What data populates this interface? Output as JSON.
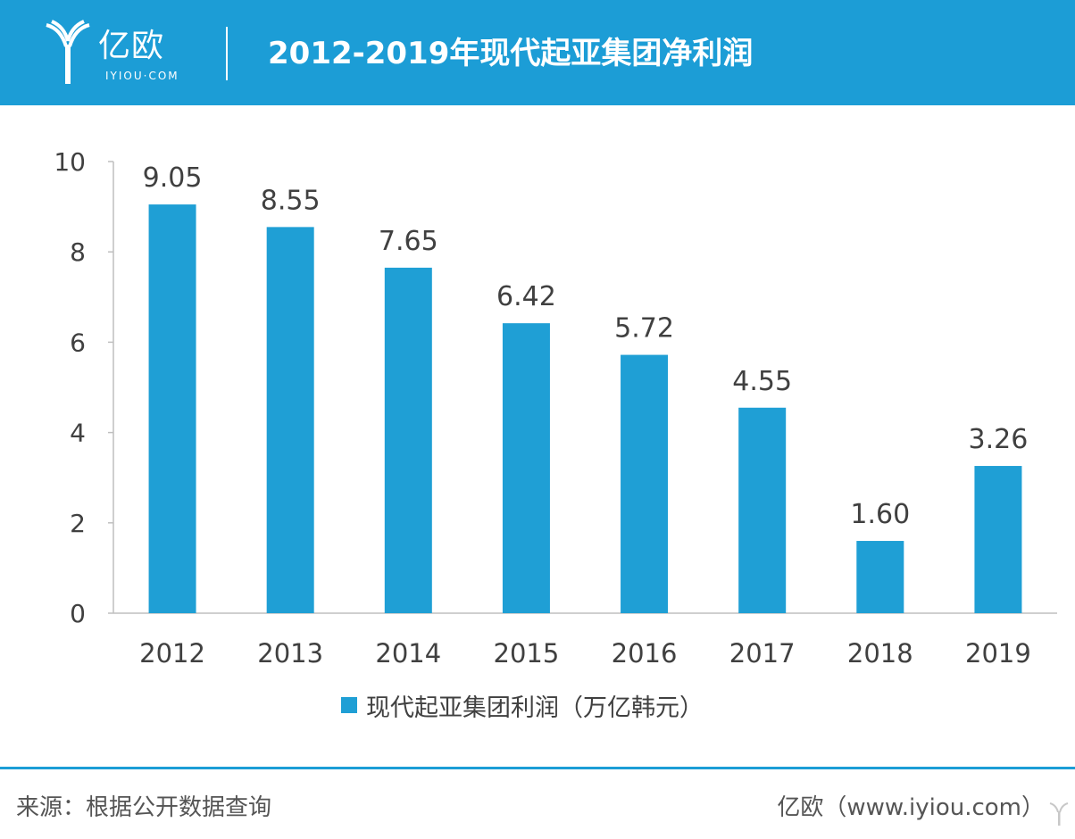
{
  "header": {
    "logo_text": "亿欧",
    "logo_subtext": "IYIOU·COM",
    "title": "2012-2019年现代起亚集团净利润"
  },
  "colors": {
    "accent": "#1c9dd6",
    "bar": "#1f9fd5",
    "axis": "#bfbfbf",
    "text": "#404040"
  },
  "chart_data": {
    "type": "bar",
    "categories": [
      "2012",
      "2013",
      "2014",
      "2015",
      "2016",
      "2017",
      "2018",
      "2019"
    ],
    "series": [
      {
        "name": "现代起亚集团利润（万亿韩元）",
        "values": [
          9.05,
          8.55,
          7.65,
          6.42,
          5.72,
          4.55,
          1.6,
          3.26
        ],
        "value_labels": [
          "9.05",
          "8.55",
          "7.65",
          "6.42",
          "5.72",
          "4.55",
          "1.60",
          "3.26"
        ]
      }
    ],
    "ylim": [
      0,
      10
    ],
    "yticks": [
      0,
      2,
      4,
      6,
      8,
      10
    ],
    "grid": false,
    "legend_position": "bottom"
  },
  "footer": {
    "source": "来源：根据公开数据查询",
    "brand": "亿欧（www.iyiou.com）",
    "watermark_icon": "yiou-logo-icon"
  }
}
